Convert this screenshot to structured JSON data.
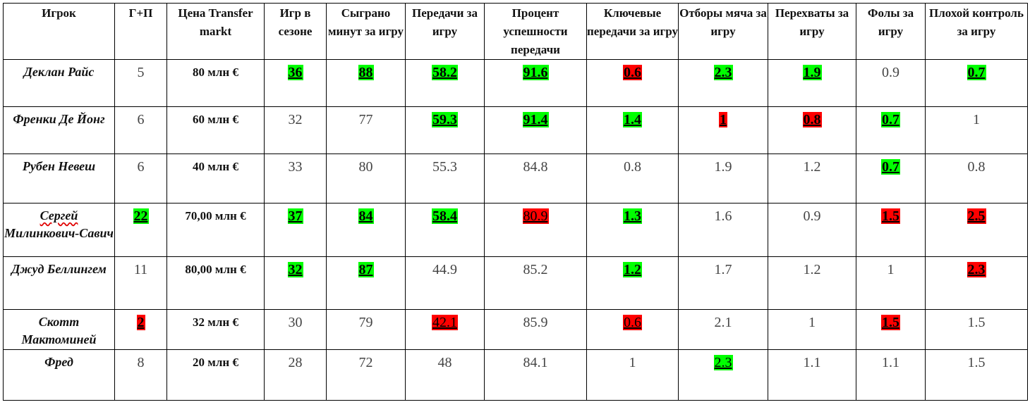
{
  "colors": {
    "good": "#00ff00",
    "bad": "#ff0000"
  },
  "headers": [
    "Игрок",
    "Г+П",
    "Цена Transfer markt",
    "Игр в сезоне",
    "Сыграно минут за игру",
    "Передачи за игру",
    "Процент успешности передачи",
    "Ключевые передачи за игру",
    "Отборы мяча за игру",
    "Перехваты за игру",
    "Фолы за игру",
    "Плохой контроль за игру"
  ],
  "rows": [
    {
      "name": "Деклан Райс",
      "cells": [
        {
          "v": "5"
        },
        {
          "v": "80 млн €"
        },
        {
          "v": "36",
          "hl": "green"
        },
        {
          "v": "88",
          "hl": "green"
        },
        {
          "v": "58.2",
          "hl": "green"
        },
        {
          "v": "91.6",
          "hl": "green"
        },
        {
          "v": "0.6",
          "hl": "red"
        },
        {
          "v": "2.3",
          "hl": "green"
        },
        {
          "v": "1.9",
          "hl": "green"
        },
        {
          "v": "0.9"
        },
        {
          "v": "0.7",
          "hl": "green"
        }
      ]
    },
    {
      "name": "Френки Де Йонг",
      "cells": [
        {
          "v": "6"
        },
        {
          "v": "60 млн €"
        },
        {
          "v": "32"
        },
        {
          "v": "77"
        },
        {
          "v": "59.3",
          "hl": "green"
        },
        {
          "v": "91.4",
          "hl": "green"
        },
        {
          "v": "1.4",
          "hl": "green"
        },
        {
          "v": "1",
          "hl": "red"
        },
        {
          "v": "0.8",
          "hl": "red"
        },
        {
          "v": "0.7",
          "hl": "green"
        },
        {
          "v": "1"
        }
      ]
    },
    {
      "name": "Рубен Невеш",
      "cells": [
        {
          "v": "6"
        },
        {
          "v": "40 млн €"
        },
        {
          "v": "33"
        },
        {
          "v": "80"
        },
        {
          "v": "55.3"
        },
        {
          "v": "84.8"
        },
        {
          "v": "0.8"
        },
        {
          "v": "1.9"
        },
        {
          "v": "1.2"
        },
        {
          "v": "0.7",
          "hl": "green"
        },
        {
          "v": "0.8"
        }
      ]
    },
    {
      "name": "Сергей Милинкович-Савич",
      "cells": [
        {
          "v": "22",
          "hl": "green"
        },
        {
          "v": "70,00 млн €"
        },
        {
          "v": "37",
          "hl": "green"
        },
        {
          "v": "84",
          "hl": "green"
        },
        {
          "v": "58.4",
          "hl": "green"
        },
        {
          "v": "80.9",
          "hl": "red",
          "plain": true
        },
        {
          "v": "1.3",
          "hl": "green"
        },
        {
          "v": "1.6"
        },
        {
          "v": "0.9"
        },
        {
          "v": "1.5",
          "hl": "red"
        },
        {
          "v": "2.5",
          "hl": "red"
        }
      ]
    },
    {
      "name": "Джуд Беллингем",
      "cells": [
        {
          "v": "11"
        },
        {
          "v": "80,00 млн €"
        },
        {
          "v": "32",
          "hl": "green"
        },
        {
          "v": "87",
          "hl": "green"
        },
        {
          "v": "44.9"
        },
        {
          "v": "85.2"
        },
        {
          "v": "1.2",
          "hl": "green"
        },
        {
          "v": "1.7"
        },
        {
          "v": "1.2"
        },
        {
          "v": "1"
        },
        {
          "v": "2.3",
          "hl": "red"
        }
      ]
    },
    {
      "name": "Скотт Мактоминей",
      "cells": [
        {
          "v": "2",
          "hl": "red"
        },
        {
          "v": "32 млн €"
        },
        {
          "v": "30"
        },
        {
          "v": "79"
        },
        {
          "v": "42.1",
          "hl": "red",
          "plain": true
        },
        {
          "v": "85.9"
        },
        {
          "v": "0.6",
          "hl": "red",
          "plain": true
        },
        {
          "v": "2.1"
        },
        {
          "v": "1"
        },
        {
          "v": "1.5",
          "hl": "red"
        },
        {
          "v": "1.5"
        }
      ]
    },
    {
      "name": "Фред",
      "cells": [
        {
          "v": "8"
        },
        {
          "v": "20 млн €"
        },
        {
          "v": "28"
        },
        {
          "v": "72"
        },
        {
          "v": "48"
        },
        {
          "v": "84.1"
        },
        {
          "v": "1"
        },
        {
          "v": "2.3",
          "hl": "green",
          "plain": true
        },
        {
          "v": "1.1"
        },
        {
          "v": "1.1"
        },
        {
          "v": "1.5"
        }
      ]
    }
  ]
}
